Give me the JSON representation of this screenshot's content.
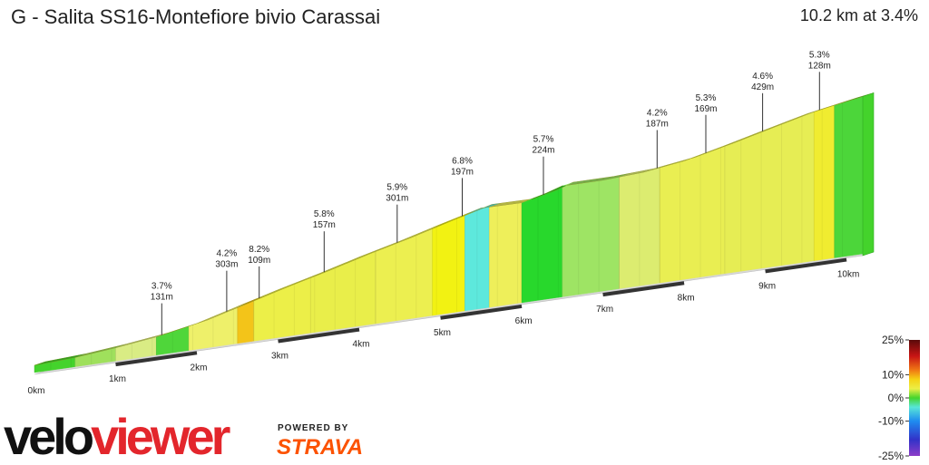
{
  "header": {
    "title": "G - Salita SS16-Montefiore bivio Carassai",
    "summary": "10.2 km at 3.4%"
  },
  "chart_data": {
    "type": "area",
    "x_unit": "km",
    "total_distance_km": 10.2,
    "average_gradient_percent": 3.4,
    "x_ticks": [
      "0km",
      "1km",
      "2km",
      "3km",
      "4km",
      "5km",
      "6km",
      "7km",
      "8km",
      "9km",
      "10km"
    ],
    "profile": [
      {
        "km": 0.0,
        "ele": 0
      },
      {
        "km": 0.5,
        "ele": 5
      },
      {
        "km": 1.0,
        "ele": 14
      },
      {
        "km": 1.5,
        "ele": 26
      },
      {
        "km": 2.0,
        "ele": 44
      },
      {
        "km": 2.5,
        "ele": 70
      },
      {
        "km": 3.0,
        "ele": 96
      },
      {
        "km": 3.5,
        "ele": 120
      },
      {
        "km": 4.0,
        "ele": 146
      },
      {
        "km": 4.5,
        "ele": 170
      },
      {
        "km": 5.0,
        "ele": 196
      },
      {
        "km": 5.5,
        "ele": 221
      },
      {
        "km": 6.0,
        "ele": 220
      },
      {
        "km": 6.3,
        "ele": 234
      },
      {
        "km": 6.5,
        "ele": 246
      },
      {
        "km": 7.0,
        "ele": 246
      },
      {
        "km": 7.5,
        "ele": 251
      },
      {
        "km": 8.0,
        "ele": 264
      },
      {
        "km": 8.5,
        "ele": 286
      },
      {
        "km": 9.0,
        "ele": 310
      },
      {
        "km": 9.5,
        "ele": 333
      },
      {
        "km": 10.0,
        "ele": 350
      },
      {
        "km": 10.2,
        "ele": 356
      }
    ],
    "segments": [
      {
        "from": 0.0,
        "to": 0.5,
        "color": "#44d32c"
      },
      {
        "from": 0.5,
        "to": 1.0,
        "color": "#9fe05c"
      },
      {
        "from": 1.0,
        "to": 1.5,
        "color": "#d9ec84"
      },
      {
        "from": 1.5,
        "to": 1.9,
        "color": "#4fd63a"
      },
      {
        "from": 1.9,
        "to": 2.5,
        "color": "#eef06a"
      },
      {
        "from": 2.5,
        "to": 2.7,
        "color": "#f3c419"
      },
      {
        "from": 2.7,
        "to": 3.4,
        "color": "#ecef48"
      },
      {
        "from": 3.4,
        "to": 4.2,
        "color": "#e9ee4a"
      },
      {
        "from": 4.2,
        "to": 4.9,
        "color": "#ecef50"
      },
      {
        "from": 4.9,
        "to": 5.3,
        "color": "#f2f212"
      },
      {
        "from": 5.3,
        "to": 5.6,
        "color": "#5de8dc"
      },
      {
        "from": 5.6,
        "to": 6.0,
        "color": "#eeef5a"
      },
      {
        "from": 6.0,
        "to": 6.5,
        "color": "#28d82c"
      },
      {
        "from": 6.5,
        "to": 7.2,
        "color": "#9ee464"
      },
      {
        "from": 7.2,
        "to": 7.7,
        "color": "#dcec70"
      },
      {
        "from": 7.7,
        "to": 8.5,
        "color": "#e9ee52"
      },
      {
        "from": 8.5,
        "to": 9.6,
        "color": "#e6ed54"
      },
      {
        "from": 9.6,
        "to": 9.85,
        "color": "#f0ec30"
      },
      {
        "from": 9.85,
        "to": 10.2,
        "color": "#4cd63a"
      }
    ],
    "annotations": [
      {
        "km": 1.5,
        "ele": 26,
        "gradient": "3.7%",
        "length": "131m"
      },
      {
        "km": 2.3,
        "ele": 60,
        "gradient": "4.2%",
        "length": "303m"
      },
      {
        "km": 2.7,
        "ele": 82,
        "gradient": "8.2%",
        "length": "109m"
      },
      {
        "km": 3.5,
        "ele": 120,
        "gradient": "5.8%",
        "length": "157m"
      },
      {
        "km": 4.4,
        "ele": 165,
        "gradient": "5.9%",
        "length": "301m"
      },
      {
        "km": 5.2,
        "ele": 212,
        "gradient": "6.8%",
        "length": "197m"
      },
      {
        "km": 6.2,
        "ele": 230,
        "gradient": "5.7%",
        "length": "224m"
      },
      {
        "km": 7.6,
        "ele": 258,
        "gradient": "4.2%",
        "length": "187m"
      },
      {
        "km": 8.2,
        "ele": 273,
        "gradient": "5.3%",
        "length": "169m"
      },
      {
        "km": 8.9,
        "ele": 305,
        "gradient": "4.6%",
        "length": "429m"
      },
      {
        "km": 9.6,
        "ele": 336,
        "gradient": "5.3%",
        "length": "128m"
      }
    ],
    "legend": {
      "labels": [
        "25%",
        "10%",
        "0%",
        "-10%",
        "-25%"
      ],
      "stops": [
        {
          "value": 25,
          "color": "#5a0a0a"
        },
        {
          "value": 18,
          "color": "#c81414"
        },
        {
          "value": 12,
          "color": "#f07814"
        },
        {
          "value": 8,
          "color": "#f5d214"
        },
        {
          "value": 4,
          "color": "#ecef46"
        },
        {
          "value": 0,
          "color": "#44d42c"
        },
        {
          "value": -4,
          "color": "#58e6d8"
        },
        {
          "value": -10,
          "color": "#1e8cf0"
        },
        {
          "value": -18,
          "color": "#3232c8"
        },
        {
          "value": -25,
          "color": "#8c3cc8"
        }
      ]
    }
  },
  "branding": {
    "logo_part1": "velo",
    "logo_part2": "viewer",
    "powered_by": "POWERED BY",
    "strava": "STRAVA"
  }
}
